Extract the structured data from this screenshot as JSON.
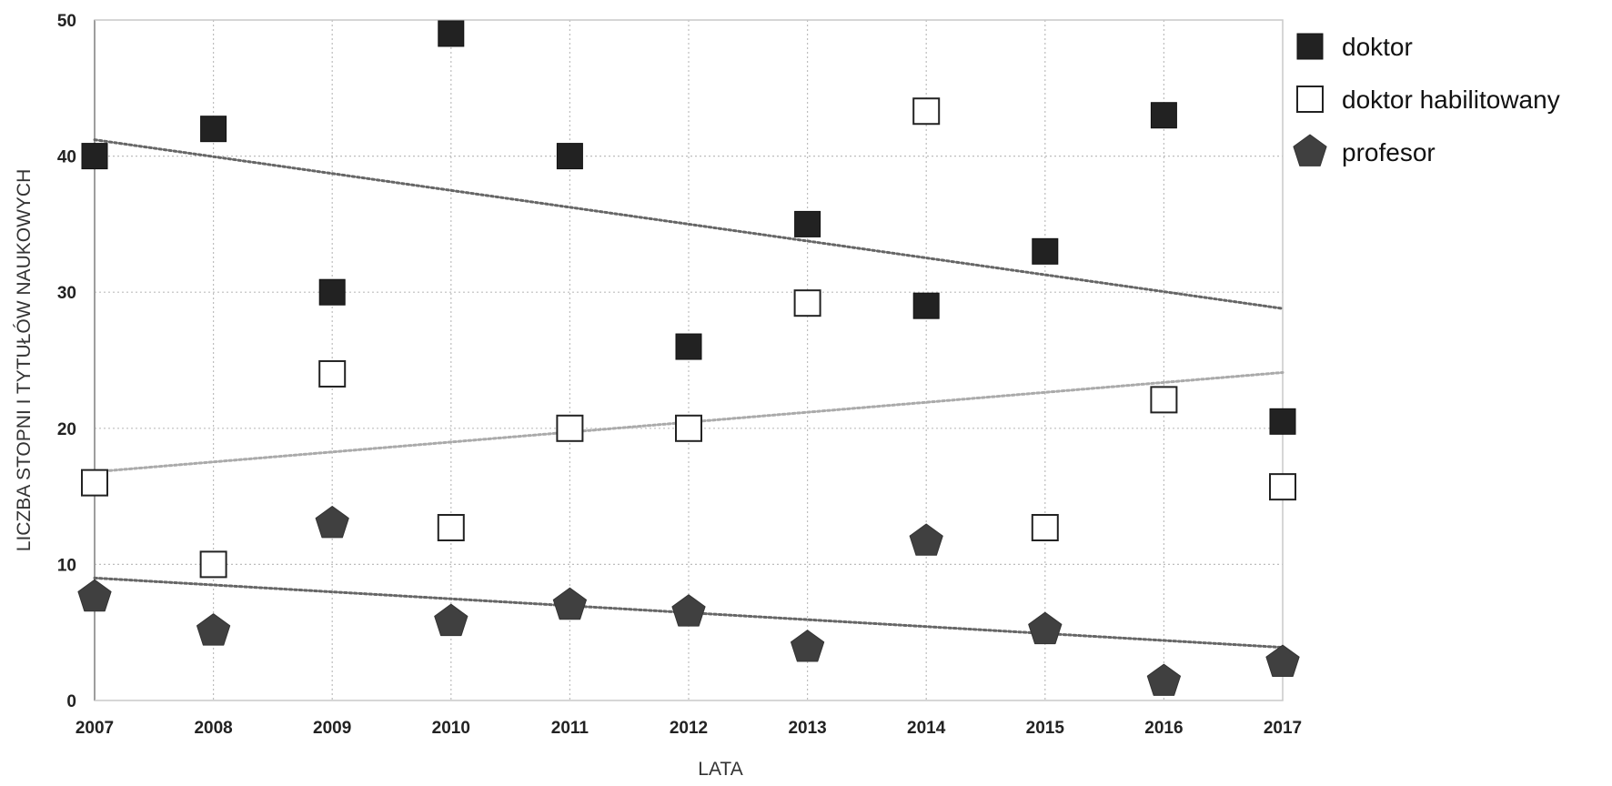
{
  "chart_data": {
    "type": "scatter",
    "title": "",
    "xlabel": "LATA",
    "ylabel": "LICZBA STOPNI I TYTUŁÓW NAUKOWYCH",
    "x": [
      2007,
      2008,
      2009,
      2010,
      2011,
      2012,
      2013,
      2014,
      2015,
      2016,
      2017
    ],
    "xlim": [
      2007,
      2017
    ],
    "ylim": [
      0,
      50
    ],
    "y_ticks": [
      0,
      10,
      20,
      30,
      40,
      50
    ],
    "grid": true,
    "legend_position": "right",
    "series": [
      {
        "name": "doktor",
        "marker": "filled-square",
        "color": "#222222",
        "values": [
          40,
          42,
          30,
          49,
          40,
          26,
          35,
          29,
          33,
          43,
          20.5
        ],
        "trendline": {
          "start": [
            2007,
            41.2
          ],
          "end": [
            2017,
            28.8
          ],
          "color": "#666666"
        }
      },
      {
        "name": "doktor habilitowany",
        "marker": "hollow-square",
        "color": "#222222",
        "values": [
          16,
          10,
          24,
          12.7,
          20,
          20,
          29.2,
          43.3,
          12.7,
          22.1,
          15.7
        ],
        "trendline": {
          "start": [
            2007,
            16.8
          ],
          "end": [
            2017,
            24.1
          ],
          "color": "#aaaaaa"
        }
      },
      {
        "name": "profesor",
        "marker": "pentagon",
        "color": "#404040",
        "values": [
          7.6,
          5.1,
          13,
          5.8,
          7,
          6.5,
          3.9,
          11.7,
          5.2,
          1.4,
          2.8
        ],
        "trendline": {
          "start": [
            2007,
            9
          ],
          "end": [
            2017,
            3.9
          ],
          "color": "#666666"
        }
      }
    ]
  }
}
